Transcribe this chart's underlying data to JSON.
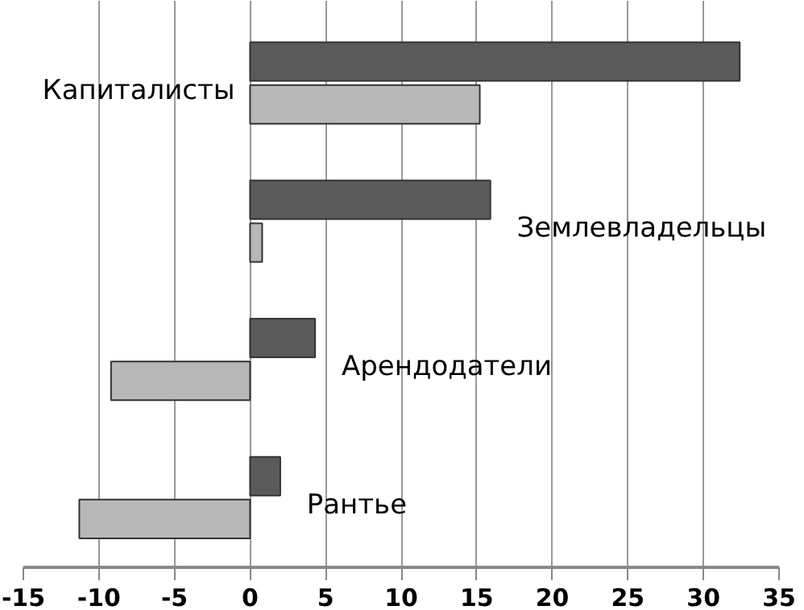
{
  "chart_data": {
    "type": "bar",
    "orientation": "horizontal",
    "categories": [
      "Капиталисты",
      "Землевладельцы",
      "Арендодатели",
      "Рантье"
    ],
    "series": [
      {
        "color": "#5a5a5a",
        "values": [
          32.4,
          15.9,
          4.3,
          2.0
        ]
      },
      {
        "color": "#b8b8b8",
        "values": [
          15.2,
          0.8,
          -9.2,
          -11.3
        ]
      }
    ],
    "xlim": [
      -15,
      35
    ],
    "xticks": [
      -15,
      -10,
      -5,
      0,
      5,
      10,
      15,
      20,
      25,
      30,
      35
    ],
    "grid": "x"
  }
}
